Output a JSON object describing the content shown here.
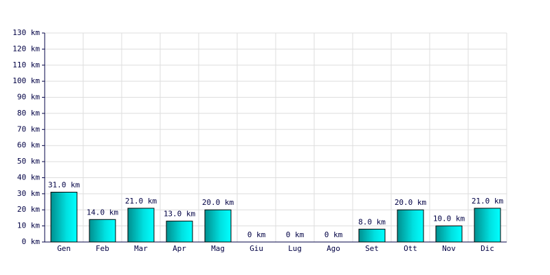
{
  "chart_data": {
    "type": "bar",
    "categories": [
      "Gen",
      "Feb",
      "Mar",
      "Apr",
      "Mag",
      "Giu",
      "Lug",
      "Ago",
      "Set",
      "Ott",
      "Nov",
      "Dic"
    ],
    "values": [
      31,
      14,
      21,
      13,
      20,
      0,
      0,
      0,
      8,
      20,
      10,
      21
    ],
    "value_labels": [
      "31.0 km",
      "14.0 km",
      "21.0 km",
      "13.0 km",
      "20.0 km",
      "0 km",
      "0 km",
      "0 km",
      "8.0 km",
      "20.0 km",
      "10.0 km",
      "21.0 km"
    ],
    "color": "#00c8c8",
    "ylim": [
      0,
      130
    ],
    "yticks": [
      {
        "value": 0,
        "label": "0 km"
      },
      {
        "value": 10,
        "label": "10 km"
      },
      {
        "value": 20,
        "label": "20 km"
      },
      {
        "value": 30,
        "label": "30 km"
      },
      {
        "value": 40,
        "label": "40 km"
      },
      {
        "value": 50,
        "label": "50 km"
      },
      {
        "value": 60,
        "label": "60 km"
      },
      {
        "value": 70,
        "label": "70 km"
      },
      {
        "value": 80,
        "label": "80 km"
      },
      {
        "value": 90,
        "label": "90 km"
      },
      {
        "value": 100,
        "label": "100 km"
      },
      {
        "value": 110,
        "label": "110 km"
      },
      {
        "value": 120,
        "label": "120 km"
      },
      {
        "value": 130,
        "label": "130 km"
      }
    ],
    "grid": true
  }
}
